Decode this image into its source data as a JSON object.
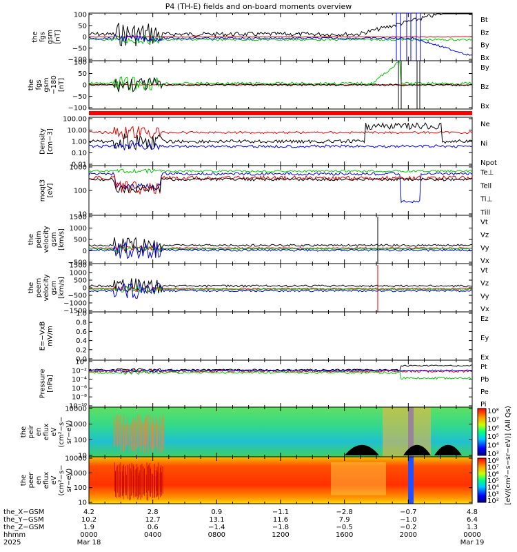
{
  "chart_data": {
    "type": "line",
    "title": "P4 (TH-E) fields and on-board moments overview",
    "panels": [
      {
        "id": "p1",
        "ylabel": [
          "the",
          "fgs",
          "gsm",
          "[nT]"
        ],
        "ticks": [
          "100",
          "50",
          "0",
          "−50",
          "−100"
        ],
        "legend": [
          {
            "name": "Bt",
            "color": "#000000"
          },
          {
            "name": "Bz",
            "color": "#e00000"
          },
          {
            "name": "By",
            "color": "#00c800"
          },
          {
            "name": "Bx",
            "color": "#0000e0"
          }
        ]
      },
      {
        "id": "p2",
        "ylabel": [
          "the",
          "fgs",
          "gsm",
          "−180",
          "[nT]"
        ],
        "ticks": [
          "100",
          "50",
          "0",
          "−50",
          "−100"
        ],
        "legend": [
          {
            "name": "By",
            "color": "#00c800"
          },
          {
            "name": "Bz",
            "color": "#e00000"
          },
          {
            "name": "Bx",
            "color": "#000000"
          }
        ]
      },
      {
        "id": "p3",
        "ylabel": [
          "Density",
          "[cm−3]"
        ],
        "ticks": [
          "100.00",
          "10.00",
          "1.00",
          "0.10",
          "0.01"
        ],
        "legend": [
          {
            "name": "Ne",
            "color": "#e00000"
          },
          {
            "name": "Ni",
            "color": "#000000"
          },
          {
            "name": "Npot",
            "color": "#0000e0"
          }
        ]
      },
      {
        "id": "p4",
        "ylabel": [
          "moqt3",
          "[eV]"
        ],
        "ticks": [
          "1000",
          "100",
          "10"
        ],
        "legend": [
          {
            "name": "Te⊥",
            "color": "#e00000"
          },
          {
            "name": "Tell",
            "color": "#000000"
          },
          {
            "name": "Ti⊥",
            "color": "#0000e0"
          },
          {
            "name": "Till",
            "color": "#00c800"
          }
        ]
      },
      {
        "id": "p5",
        "ylabel": [
          "the",
          "peim",
          "velocity",
          "gsm",
          "[km/s]"
        ],
        "ticks": [
          "1500",
          "1000",
          "500",
          "0",
          "−500"
        ],
        "legend": [
          {
            "name": "Vt",
            "color": "#000000"
          },
          {
            "name": "Vz",
            "color": "#e00000"
          },
          {
            "name": "Vy",
            "color": "#00c800"
          },
          {
            "name": "Vx",
            "color": "#0000e0"
          }
        ]
      },
      {
        "id": "p6",
        "ylabel": [
          "the",
          "peem",
          "velocity",
          "gsm",
          "[km/s]"
        ],
        "ticks": [
          "1500",
          "1000",
          "500",
          "0",
          "−500",
          "−1000",
          "−1500"
        ],
        "legend": [
          {
            "name": "Vt",
            "color": "#000000"
          },
          {
            "name": "Vz",
            "color": "#e00000"
          },
          {
            "name": "Vy",
            "color": "#00c800"
          },
          {
            "name": "Vx",
            "color": "#0000e0"
          }
        ]
      },
      {
        "id": "p7",
        "ylabel": [
          "E=−VxB",
          "mV/m"
        ],
        "ticks": [
          "1.0",
          "0.8",
          "0.6",
          "0.4",
          "0.2",
          "0.0"
        ],
        "legend": [
          {
            "name": "Ez",
            "color": "#e00000"
          },
          {
            "name": "Ey",
            "color": "#00c800"
          },
          {
            "name": "Ex",
            "color": "#0000e0"
          }
        ]
      },
      {
        "id": "p8",
        "ylabel": [
          "Pressure",
          "[nPa]"
        ],
        "ticks": [
          "10⁰",
          "10⁻²",
          "10⁻⁴",
          "10⁻⁶",
          "10⁻⁸",
          "10⁻¹⁰"
        ],
        "legend": [
          {
            "name": "Pt",
            "color": "#000000"
          },
          {
            "name": "Pb",
            "color": "#e00000"
          },
          {
            "name": "Pe",
            "color": "#00c800"
          },
          {
            "name": "Pi",
            "color": "#0000e0"
          }
        ]
      },
      {
        "id": "p9",
        "ylabel": [
          "the",
          "peir",
          "en",
          "eflux",
          "eV",
          "(cm²−s−",
          "sr−eV)"
        ],
        "ticks": [
          "10000",
          "1000",
          "100",
          "10"
        ],
        "colorbar": [
          "10⁸",
          "10⁷",
          "10⁶",
          "10⁵",
          "10⁴",
          "10³"
        ]
      },
      {
        "id": "p10",
        "ylabel": [
          "the",
          "peer",
          "en",
          "eflux",
          "eV",
          "(cm²−s−",
          "sr−eV)"
        ],
        "ticks": [
          "10000",
          "1000",
          "100",
          "10"
        ],
        "colorbar": [
          "10⁸",
          "10⁷",
          "10⁶",
          "10⁵",
          "10⁴",
          "10³",
          "10²"
        ]
      }
    ],
    "colorbar_label": "[eV/(cm²−s−sr−eV)] (All Qs)",
    "ephemeris": {
      "labels": [
        "the_X−GSM",
        "the_Y−GSM",
        "the_Z−GSM",
        "hhmm",
        "2025"
      ],
      "columns": [
        {
          "x": "4.2",
          "y": "10.2",
          "z": "1.9",
          "t": "0000",
          "d": "Mar 18"
        },
        {
          "x": "2.8",
          "y": "12.7",
          "z": "0.6",
          "t": "0400",
          "d": ""
        },
        {
          "x": "0.9",
          "y": "13.1",
          "z": "−1.4",
          "t": "0800",
          "d": ""
        },
        {
          "x": "−1.1",
          "y": "11.6",
          "z": "−1.8",
          "t": "1200",
          "d": ""
        },
        {
          "x": "−2.8",
          "y": "7.9",
          "z": "−0.5",
          "t": "1600",
          "d": ""
        },
        {
          "x": "−0.7",
          "y": "−1.0",
          "z": "−0.2",
          "t": "2000",
          "d": ""
        },
        {
          "x": "4.8",
          "y": "6.4",
          "z": "1.3",
          "t": "0000",
          "d": "Mar 19"
        }
      ]
    },
    "x_hours": [
      0,
      4,
      8,
      12,
      16,
      20,
      24
    ]
  }
}
